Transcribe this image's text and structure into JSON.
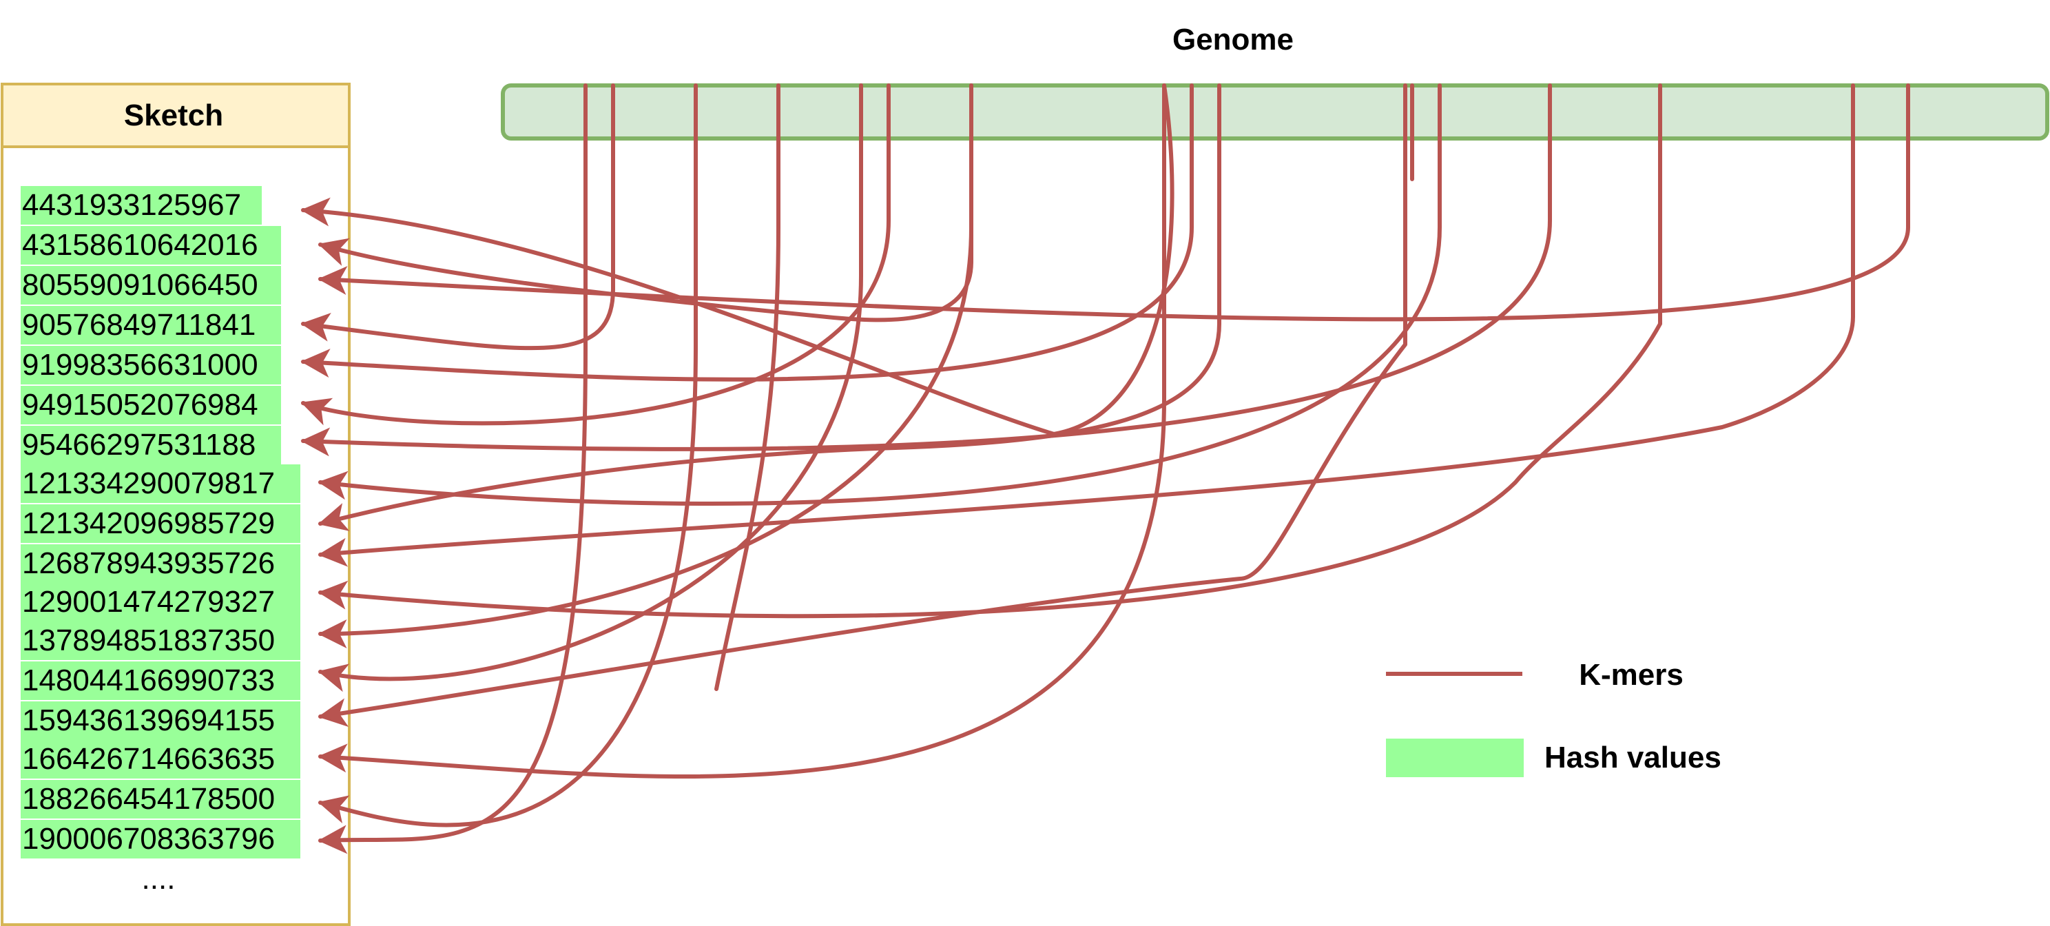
{
  "genome": {
    "title": "Genome"
  },
  "sketch": {
    "title": "Sketch",
    "hash_values": [
      "4431933125967",
      "43158610642016",
      "80559091066450",
      "90576849711841",
      "91998356631000",
      "94915052076984",
      "95466297531188",
      "121334290079817",
      "121342096985729",
      "126878943935726",
      "129001474279327",
      "137894851837350",
      "148044166990733",
      "159436139694155",
      "166426714663635",
      "188266454178500",
      "190006708363796"
    ],
    "ellipsis": "...."
  },
  "legend": {
    "kmers_label": "K-mers",
    "hash_label": "Hash values"
  },
  "colors": {
    "genome_fill": "#d5e8d4",
    "genome_stroke": "#82b366",
    "sketch_header_fill": "#fff2cc",
    "sketch_stroke": "#d6b656",
    "hash_fill": "#99ff99",
    "kmer_stroke": "#b85450"
  }
}
